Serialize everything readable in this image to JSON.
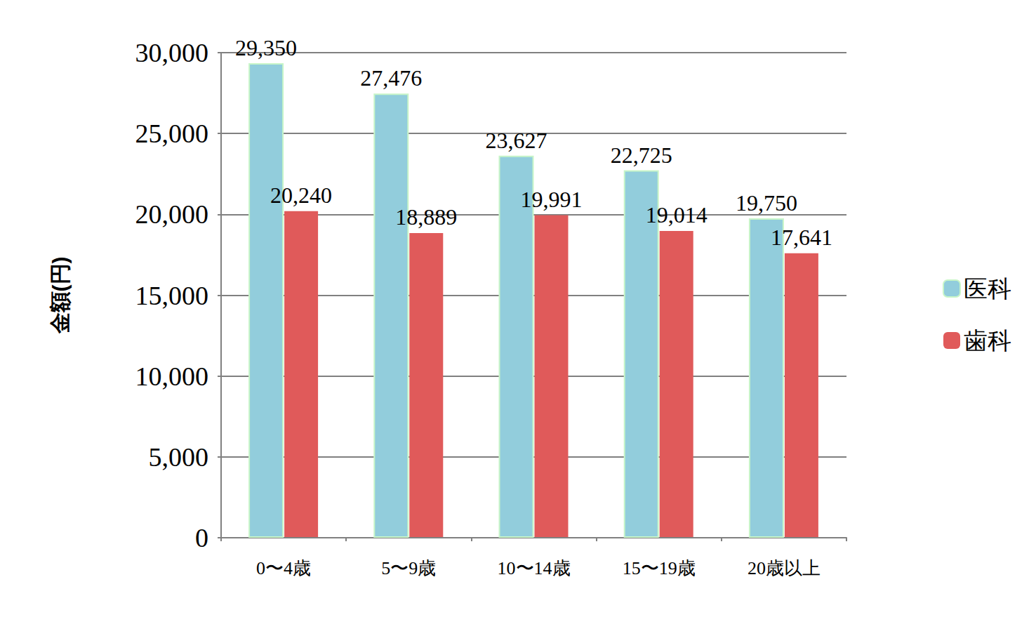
{
  "chart_data": {
    "type": "bar",
    "y_label": "金額(円)",
    "categories": [
      "0〜4歳",
      "5〜9歳",
      "10〜14歳",
      "15〜19歳",
      "20歳以上"
    ],
    "series": [
      {
        "name": "医科",
        "color": "#92cddc",
        "values": [
          29350,
          27476,
          23627,
          22725,
          19750
        ],
        "value_labels": [
          "29,350",
          "27,476",
          "23,627",
          "22,725",
          "19,750"
        ]
      },
      {
        "name": "歯科",
        "color": "#e05a5a",
        "values": [
          20240,
          18889,
          19991,
          19014,
          17641
        ],
        "value_labels": [
          "20,240",
          "18,889",
          "19,991",
          "19,014",
          "17,641"
        ]
      }
    ],
    "ylim": [
      0,
      30000
    ],
    "yticks": [
      0,
      {
        "value": 5000,
        "label": "5,000"
      },
      {
        "value": 10000,
        "label": "10,000"
      },
      {
        "value": 15000,
        "label": "15,000"
      },
      {
        "value": 20000,
        "label": "20,000"
      },
      {
        "value": 25000,
        "label": "25,000"
      },
      {
        "value": 30000,
        "label": "30,000"
      }
    ],
    "grid": true,
    "legend": "right",
    "data_labels": true
  }
}
